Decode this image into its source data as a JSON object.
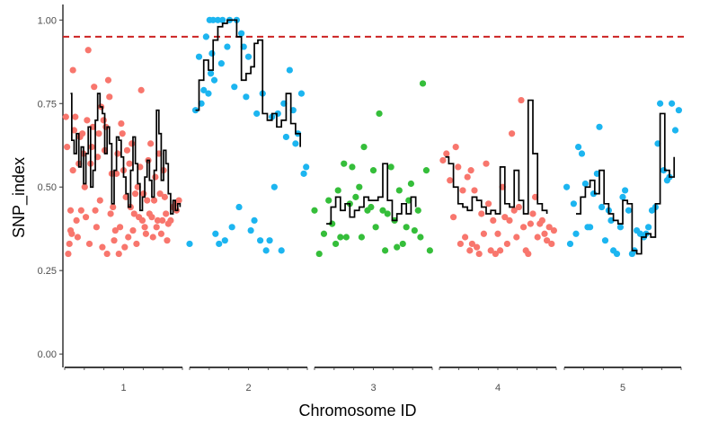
{
  "chart_data": {
    "type": "scatter",
    "title": "",
    "xlabel": "Chromosome ID",
    "ylabel": "SNP_index",
    "ylim": [
      -0.04,
      1.06
    ],
    "yticks": [
      0.0,
      0.25,
      0.5,
      0.75,
      1.0
    ],
    "ytick_labels": [
      "0.00",
      "0.25",
      "0.50",
      "0.75",
      "1.00"
    ],
    "grid": false,
    "threshold": {
      "value": 0.95,
      "color": "#cc2222",
      "style": "dashed"
    },
    "colors": {
      "1": "#F8766D",
      "2": "#1CB5F0",
      "3": "#35BE3A",
      "4": "#F8766D",
      "5": "#1CB5F0",
      "line": "#000000"
    },
    "chromosomes": [
      {
        "id": "1",
        "label": "1",
        "x": [
          0.01,
          0.02,
          0.03,
          0.04,
          0.05,
          0.05,
          0.06,
          0.07,
          0.07,
          0.08,
          0.09,
          0.1,
          0.11,
          0.12,
          0.13,
          0.14,
          0.15,
          0.16,
          0.17,
          0.18,
          0.19,
          0.2,
          0.21,
          0.22,
          0.23,
          0.24,
          0.25,
          0.26,
          0.27,
          0.28,
          0.29,
          0.3,
          0.31,
          0.32,
          0.33,
          0.34,
          0.35,
          0.36,
          0.37,
          0.38,
          0.39,
          0.4,
          0.41,
          0.42,
          0.43,
          0.44,
          0.45,
          0.46,
          0.47,
          0.48,
          0.49,
          0.5,
          0.51,
          0.52,
          0.53,
          0.54,
          0.55,
          0.56,
          0.57,
          0.58,
          0.59,
          0.6,
          0.61,
          0.62,
          0.63,
          0.64,
          0.65,
          0.66,
          0.67,
          0.68,
          0.69,
          0.7,
          0.71,
          0.72,
          0.73,
          0.74,
          0.75,
          0.76,
          0.77,
          0.78,
          0.79,
          0.8,
          0.81,
          0.82,
          0.83,
          0.84,
          0.85,
          0.86,
          0.87,
          0.88,
          0.9,
          0.92,
          0.94,
          0.95,
          0.97
        ],
        "y": [
          0.71,
          0.62,
          0.3,
          0.33,
          0.37,
          0.43,
          0.36,
          0.85,
          0.55,
          0.67,
          0.71,
          0.4,
          0.35,
          0.57,
          0.65,
          0.43,
          0.66,
          0.6,
          0.5,
          0.41,
          0.7,
          0.91,
          0.33,
          0.57,
          0.62,
          0.68,
          0.8,
          0.43,
          0.38,
          0.59,
          0.66,
          0.46,
          0.74,
          0.32,
          0.7,
          0.61,
          0.68,
          0.3,
          0.82,
          0.77,
          0.42,
          0.54,
          0.44,
          0.34,
          0.37,
          0.54,
          0.6,
          0.3,
          0.38,
          0.69,
          0.66,
          0.55,
          0.32,
          0.47,
          0.61,
          0.35,
          0.57,
          0.44,
          0.63,
          0.37,
          0.42,
          0.48,
          0.33,
          0.5,
          0.41,
          0.56,
          0.79,
          0.4,
          0.48,
          0.38,
          0.36,
          0.46,
          0.58,
          0.42,
          0.63,
          0.41,
          0.35,
          0.46,
          0.53,
          0.38,
          0.4,
          0.6,
          0.48,
          0.36,
          0.4,
          0.55,
          0.47,
          0.42,
          0.34,
          0.39,
          0.4,
          0.44,
          0.45,
          0.43,
          0.46
        ],
        "line_x": [
          0.05,
          0.06,
          0.08,
          0.1,
          0.12,
          0.14,
          0.16,
          0.18,
          0.2,
          0.22,
          0.24,
          0.26,
          0.28,
          0.3,
          0.32,
          0.34,
          0.36,
          0.38,
          0.4,
          0.42,
          0.44,
          0.46,
          0.48,
          0.5,
          0.52,
          0.54,
          0.56,
          0.58,
          0.6,
          0.62,
          0.64,
          0.66,
          0.68,
          0.7,
          0.72,
          0.74,
          0.76,
          0.78,
          0.8,
          0.82,
          0.84,
          0.86,
          0.88,
          0.9,
          0.92,
          0.94,
          0.96,
          0.98
        ],
        "line_y": [
          0.78,
          0.64,
          0.6,
          0.66,
          0.56,
          0.62,
          0.51,
          0.6,
          0.68,
          0.5,
          0.55,
          0.7,
          0.78,
          0.74,
          0.72,
          0.6,
          0.68,
          0.63,
          0.45,
          0.55,
          0.65,
          0.64,
          0.59,
          0.53,
          0.48,
          0.44,
          0.55,
          0.65,
          0.57,
          0.51,
          0.43,
          0.47,
          0.53,
          0.58,
          0.52,
          0.47,
          0.55,
          0.73,
          0.66,
          0.52,
          0.61,
          0.57,
          0.48,
          0.42,
          0.46,
          0.43,
          0.45,
          0.44
        ]
      },
      {
        "id": "2",
        "label": "2",
        "x": [
          0.0,
          0.05,
          0.08,
          0.1,
          0.12,
          0.14,
          0.16,
          0.17,
          0.18,
          0.19,
          0.2,
          0.21,
          0.22,
          0.24,
          0.25,
          0.27,
          0.28,
          0.3,
          0.32,
          0.34,
          0.36,
          0.38,
          0.4,
          0.42,
          0.44,
          0.46,
          0.48,
          0.5,
          0.52,
          0.55,
          0.57,
          0.6,
          0.62,
          0.65,
          0.68,
          0.7,
          0.72,
          0.75,
          0.78,
          0.8,
          0.82,
          0.85,
          0.88,
          0.9,
          0.92,
          0.95,
          0.97,
          0.99
        ],
        "y": [
          0.33,
          0.73,
          0.89,
          0.75,
          0.79,
          0.95,
          0.78,
          1.0,
          0.84,
          0.9,
          1.0,
          0.82,
          0.36,
          1.0,
          0.33,
          0.87,
          1.0,
          0.34,
          0.92,
          1.0,
          0.38,
          0.8,
          1.0,
          0.44,
          0.96,
          0.92,
          0.77,
          0.89,
          0.37,
          0.4,
          0.72,
          0.34,
          0.78,
          0.31,
          0.34,
          0.71,
          0.5,
          0.72,
          0.31,
          0.75,
          0.65,
          0.85,
          0.73,
          0.63,
          0.66,
          0.78,
          0.54,
          0.56
        ],
        "line_x": [
          0.05,
          0.08,
          0.12,
          0.16,
          0.2,
          0.24,
          0.28,
          0.32,
          0.36,
          0.4,
          0.44,
          0.48,
          0.52,
          0.55,
          0.58,
          0.62,
          0.66,
          0.7,
          0.74,
          0.78,
          0.82,
          0.86,
          0.9,
          0.94
        ],
        "line_y": [
          0.73,
          0.82,
          0.88,
          0.85,
          0.94,
          0.98,
          0.99,
          1.0,
          1.0,
          0.95,
          0.82,
          0.84,
          0.86,
          0.93,
          0.94,
          0.72,
          0.7,
          0.72,
          0.68,
          0.7,
          0.78,
          0.69,
          0.66,
          0.62
        ]
      },
      {
        "id": "3",
        "label": "3",
        "x": [
          0.0,
          0.04,
          0.08,
          0.12,
          0.15,
          0.18,
          0.2,
          0.22,
          0.25,
          0.27,
          0.3,
          0.32,
          0.35,
          0.38,
          0.4,
          0.42,
          0.45,
          0.48,
          0.5,
          0.52,
          0.55,
          0.58,
          0.6,
          0.62,
          0.65,
          0.68,
          0.7,
          0.72,
          0.75,
          0.78,
          0.8,
          0.82,
          0.85,
          0.88,
          0.9,
          0.92,
          0.95,
          0.98
        ],
        "y": [
          0.43,
          0.3,
          0.36,
          0.46,
          0.39,
          0.33,
          0.49,
          0.35,
          0.57,
          0.35,
          0.45,
          0.56,
          0.47,
          0.5,
          0.35,
          0.62,
          0.43,
          0.44,
          0.55,
          0.38,
          0.72,
          0.43,
          0.31,
          0.42,
          0.56,
          0.4,
          0.32,
          0.49,
          0.33,
          0.38,
          0.46,
          0.51,
          0.37,
          0.43,
          0.35,
          0.81,
          0.55,
          0.31
        ],
        "line_x": [
          0.1,
          0.14,
          0.18,
          0.22,
          0.26,
          0.3,
          0.34,
          0.38,
          0.42,
          0.46,
          0.5,
          0.54,
          0.58,
          0.62,
          0.66,
          0.7,
          0.74,
          0.78,
          0.82,
          0.86
        ],
        "line_y": [
          0.39,
          0.44,
          0.47,
          0.43,
          0.45,
          0.41,
          0.43,
          0.44,
          0.47,
          0.46,
          0.46,
          0.47,
          0.57,
          0.46,
          0.4,
          0.42,
          0.45,
          0.42,
          0.47,
          0.44
        ]
      },
      {
        "id": "4",
        "label": "4",
        "x": [
          0.03,
          0.06,
          0.09,
          0.12,
          0.14,
          0.16,
          0.18,
          0.2,
          0.22,
          0.24,
          0.26,
          0.27,
          0.28,
          0.3,
          0.32,
          0.34,
          0.36,
          0.38,
          0.4,
          0.42,
          0.44,
          0.46,
          0.48,
          0.5,
          0.52,
          0.54,
          0.56,
          0.58,
          0.6,
          0.62,
          0.64,
          0.66,
          0.68,
          0.7,
          0.72,
          0.74,
          0.76,
          0.78,
          0.8,
          0.82,
          0.84,
          0.86,
          0.88,
          0.9,
          0.92,
          0.94,
          0.96,
          0.98
        ],
        "y": [
          0.58,
          0.6,
          0.52,
          0.41,
          0.62,
          0.56,
          0.33,
          0.49,
          0.35,
          0.53,
          0.31,
          0.55,
          0.33,
          0.49,
          0.32,
          0.3,
          0.42,
          0.36,
          0.57,
          0.45,
          0.31,
          0.4,
          0.3,
          0.36,
          0.31,
          0.5,
          0.41,
          0.33,
          0.4,
          0.66,
          0.43,
          0.35,
          0.44,
          0.76,
          0.38,
          0.31,
          0.3,
          0.39,
          0.42,
          0.47,
          0.35,
          0.39,
          0.4,
          0.36,
          0.34,
          0.38,
          0.33,
          0.37
        ],
        "line_x": [
          0.05,
          0.08,
          0.12,
          0.16,
          0.2,
          0.24,
          0.28,
          0.32,
          0.36,
          0.4,
          0.44,
          0.48,
          0.52,
          0.56,
          0.6,
          0.64,
          0.68,
          0.72,
          0.76,
          0.8,
          0.84,
          0.88,
          0.92
        ],
        "line_y": [
          0.59,
          0.57,
          0.5,
          0.45,
          0.44,
          0.43,
          0.47,
          0.46,
          0.44,
          0.42,
          0.43,
          0.42,
          0.56,
          0.45,
          0.44,
          0.55,
          0.46,
          0.42,
          0.76,
          0.6,
          0.45,
          0.43,
          0.42
        ]
      },
      {
        "id": "5",
        "label": "5",
        "x": [
          0.02,
          0.05,
          0.08,
          0.1,
          0.12,
          0.15,
          0.18,
          0.2,
          0.22,
          0.25,
          0.28,
          0.3,
          0.32,
          0.35,
          0.38,
          0.4,
          0.42,
          0.45,
          0.48,
          0.5,
          0.52,
          0.55,
          0.58,
          0.6,
          0.62,
          0.65,
          0.68,
          0.7,
          0.72,
          0.75,
          0.78,
          0.8,
          0.82,
          0.85,
          0.88,
          0.9,
          0.92,
          0.95,
          0.98
        ],
        "y": [
          0.5,
          0.33,
          0.45,
          0.36,
          0.62,
          0.6,
          0.51,
          0.38,
          0.38,
          0.48,
          0.54,
          0.68,
          0.44,
          0.34,
          0.43,
          0.4,
          0.31,
          0.3,
          0.38,
          0.47,
          0.49,
          0.43,
          0.3,
          0.31,
          0.37,
          0.36,
          0.35,
          0.36,
          0.38,
          0.43,
          0.44,
          0.63,
          0.75,
          0.55,
          0.52,
          0.53,
          0.75,
          0.67,
          0.73
        ],
        "line_x": [
          0.1,
          0.14,
          0.18,
          0.22,
          0.26,
          0.3,
          0.34,
          0.38,
          0.42,
          0.46,
          0.5,
          0.54,
          0.58,
          0.62,
          0.66,
          0.7,
          0.74,
          0.78,
          0.82,
          0.86,
          0.9,
          0.94
        ],
        "line_y": [
          0.42,
          0.47,
          0.5,
          0.52,
          0.48,
          0.55,
          0.45,
          0.42,
          0.4,
          0.39,
          0.46,
          0.45,
          0.31,
          0.3,
          0.35,
          0.36,
          0.35,
          0.45,
          0.72,
          0.55,
          0.53,
          0.59
        ]
      }
    ]
  }
}
